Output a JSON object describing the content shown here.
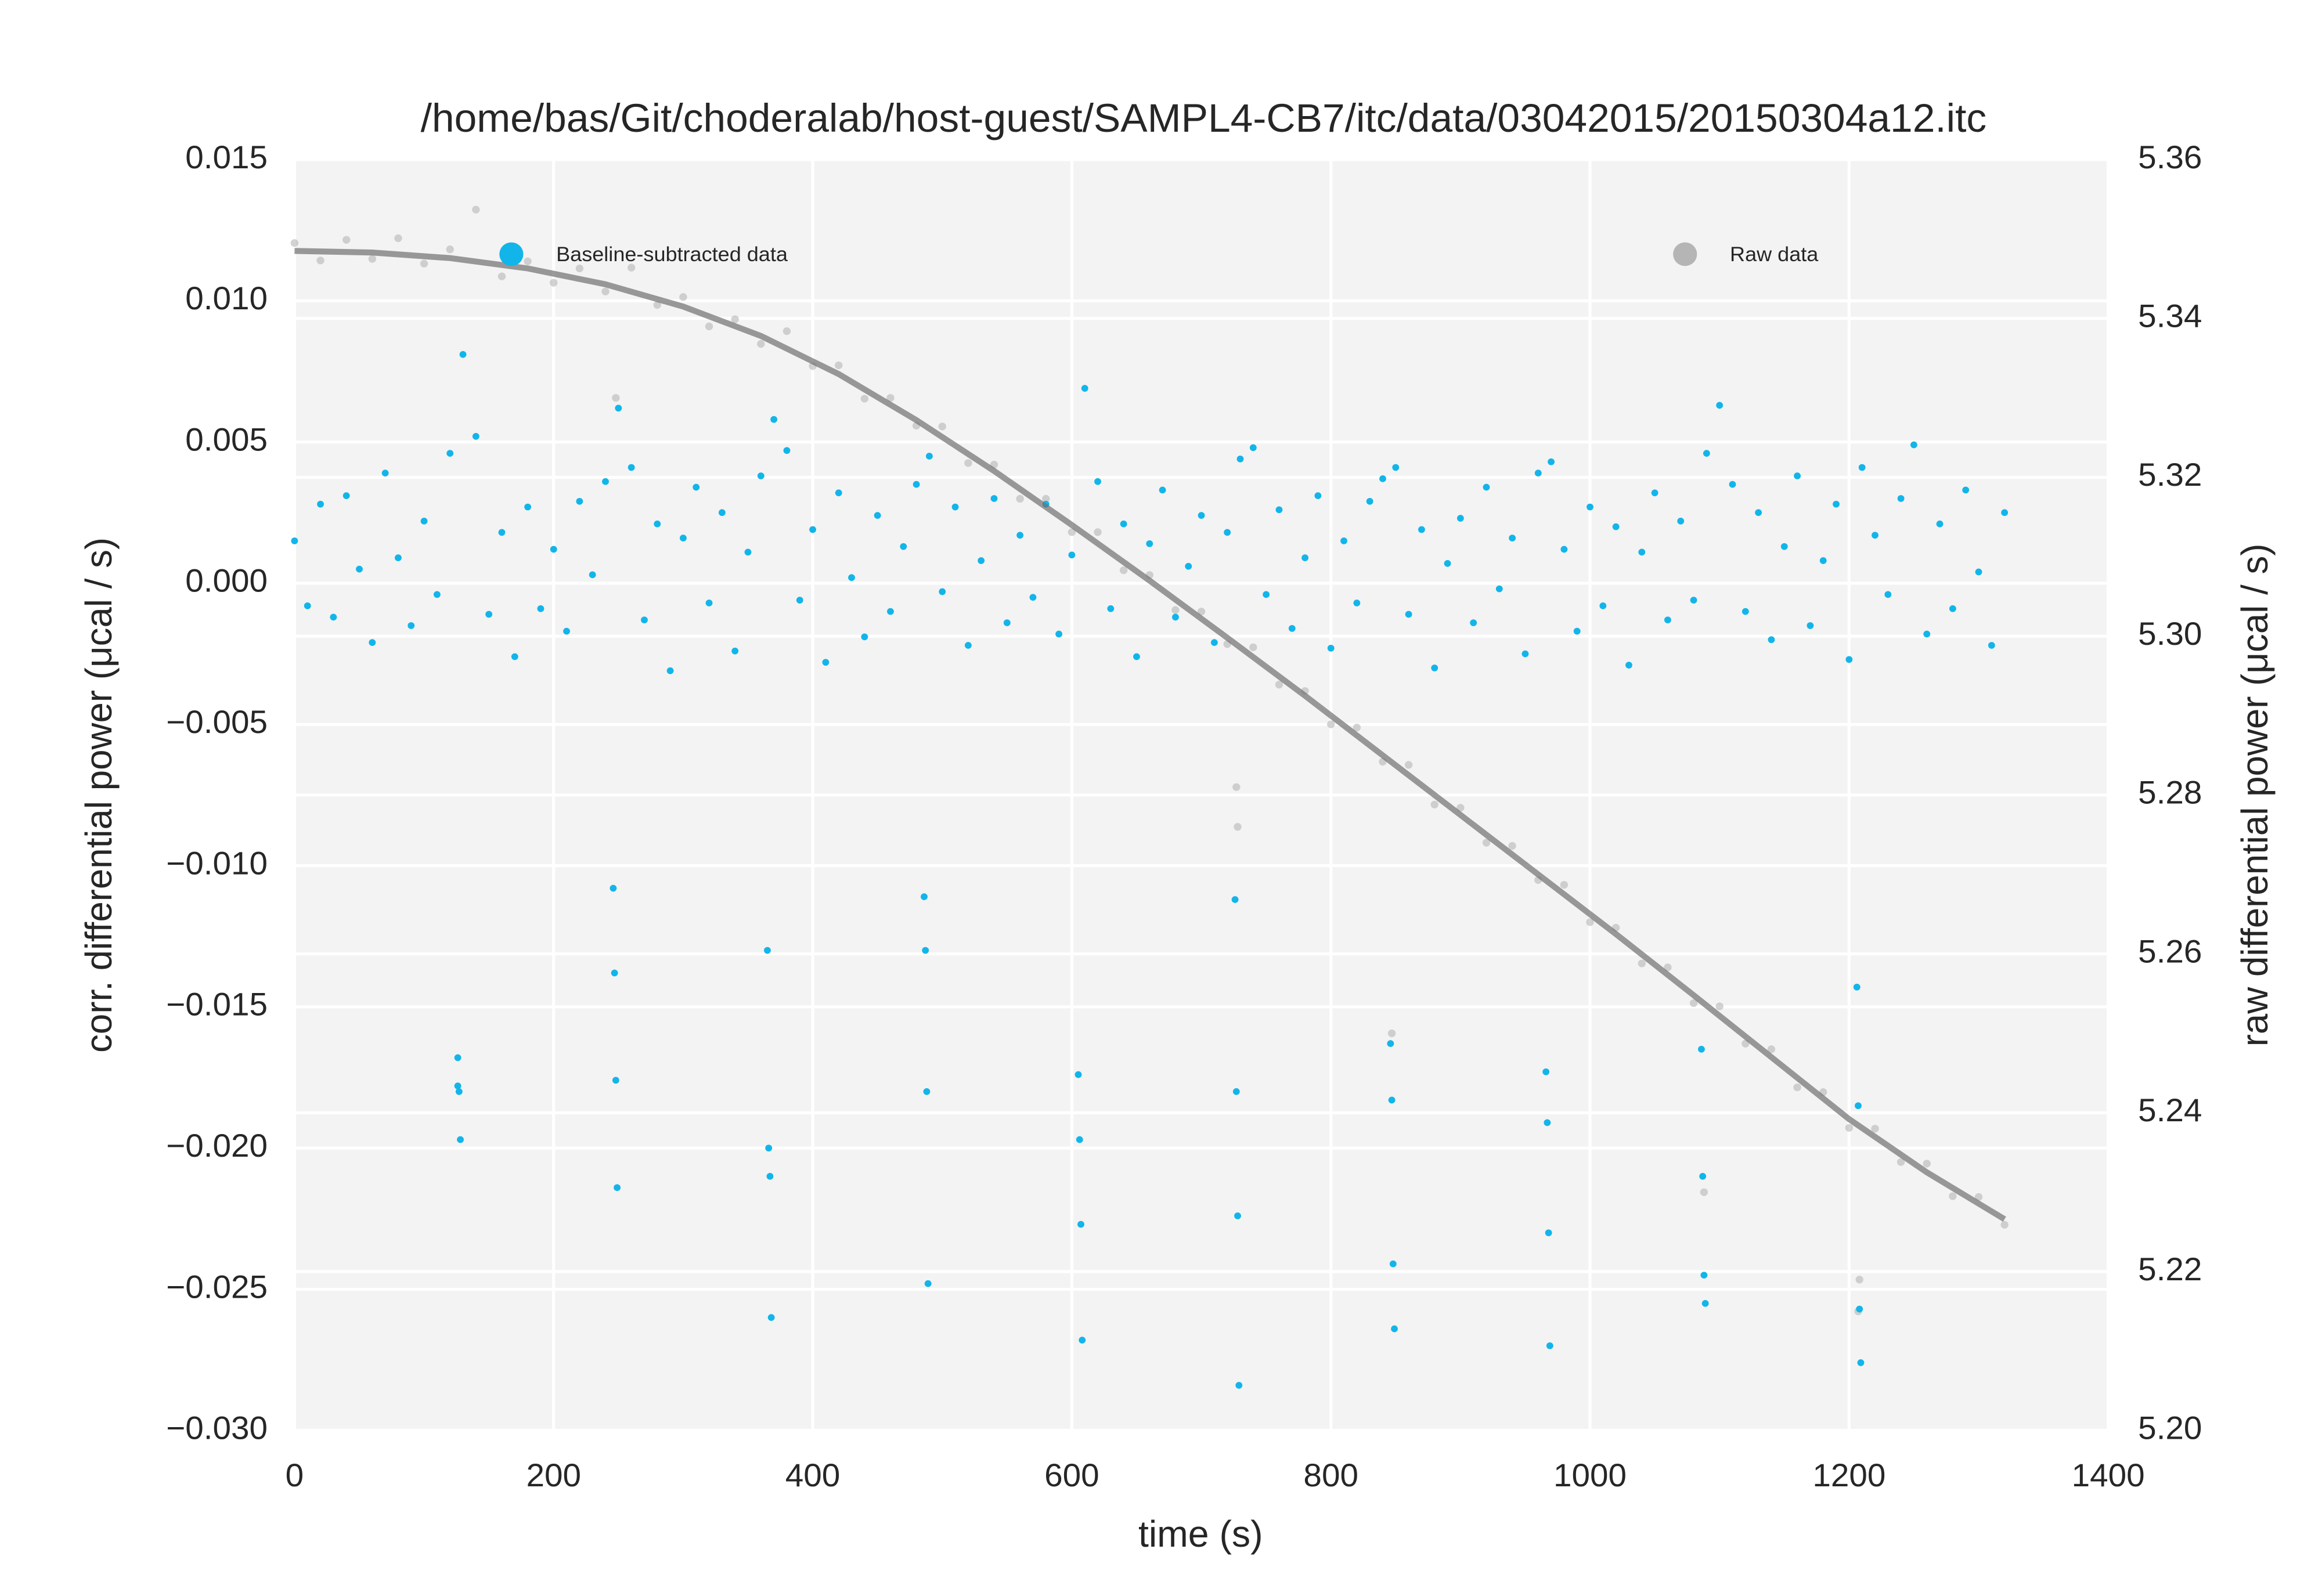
{
  "chart_data": {
    "type": "scatter",
    "title": "/home/bas/Git/choderalab/host-guest/SAMPL4-CB7/itc/data/03042015/20150304a12.itc",
    "x_label": "time (s)",
    "y_label": "corr. differential power (μcal / s)",
    "y2_label": "raw differential power (μcal / s)",
    "xlim": [
      0,
      1400
    ],
    "xticks": [
      0,
      200,
      400,
      600,
      800,
      1000,
      1200,
      1400
    ],
    "ylim": [
      -0.03,
      0.015
    ],
    "yticks": [
      {
        "value": -0.03,
        "label": "−0.030"
      },
      {
        "value": -0.025,
        "label": "−0.025"
      },
      {
        "value": -0.02,
        "label": "−0.020"
      },
      {
        "value": -0.015,
        "label": "−0.015"
      },
      {
        "value": -0.01,
        "label": "−0.010"
      },
      {
        "value": -0.005,
        "label": "−0.005"
      },
      {
        "value": 0,
        "label": "0.000"
      },
      0.005,
      {
        "value": 0.01,
        "label": "0.010"
      },
      0.015
    ],
    "y2lim": [
      5.2,
      5.36
    ],
    "y2ticks": [
      {
        "value": 5.2,
        "label": "5.20"
      },
      5.22,
      5.24,
      5.26,
      5.28,
      {
        "value": 5.3,
        "label": "5.30"
      },
      5.32,
      5.34,
      5.36
    ],
    "grid": true,
    "series": [
      {
        "name": "Raw data",
        "color": "#b5b5b5",
        "axis": "y2",
        "legend": "upper right",
        "x": [
          0,
          20,
          40,
          60,
          80,
          100,
          120,
          140,
          160,
          180,
          200,
          220,
          240,
          260,
          280,
          300,
          320,
          340,
          360,
          380,
          400,
          420,
          440,
          460,
          480,
          500,
          520,
          540,
          560,
          580,
          600,
          620,
          640,
          660,
          680,
          700,
          720,
          740,
          760,
          780,
          800,
          820,
          840,
          860,
          880,
          900,
          920,
          940,
          960,
          980,
          1000,
          1020,
          1040,
          1060,
          1080,
          1100,
          1120,
          1140,
          1160,
          1180,
          1200,
          1220,
          1240,
          1260,
          1280,
          1300,
          1320,
          248,
          727,
          728,
          847,
          1088,
          1207,
          1208
        ],
        "values": [
          5.3495,
          5.3473,
          5.3499,
          5.3475,
          5.3501,
          5.3469,
          5.3487,
          5.3537,
          5.3453,
          5.3472,
          5.3445,
          5.3463,
          5.3434,
          5.3464,
          5.3417,
          5.3427,
          5.339,
          5.3399,
          5.3368,
          5.3384,
          5.334,
          5.3341,
          5.3299,
          5.33,
          5.3265,
          5.3264,
          5.3218,
          5.3216,
          5.3173,
          5.3173,
          5.3131,
          5.3131,
          5.3083,
          5.3077,
          5.3033,
          5.3031,
          5.299,
          5.2986,
          5.2939,
          5.2931,
          5.2889,
          5.2885,
          5.2842,
          5.2838,
          5.2788,
          5.2784,
          5.274,
          5.2736,
          5.2693,
          5.2687,
          5.264,
          5.2633,
          5.2588,
          5.2583,
          5.2538,
          5.2534,
          5.2487,
          5.248,
          5.2432,
          5.2426,
          5.2381,
          5.238,
          5.2338,
          5.2336,
          5.2295,
          5.2294,
          5.2259,
          5.33,
          5.281,
          5.276,
          5.25,
          5.23,
          5.215,
          5.219
        ]
      },
      {
        "name": "Baseline-subtracted data",
        "color": "#12b5ea",
        "axis": "y",
        "legend": "upper left",
        "x": [
          0,
          10,
          20,
          30,
          40,
          50,
          60,
          70,
          80,
          90,
          100,
          110,
          120,
          130,
          140,
          150,
          160,
          170,
          180,
          190,
          200,
          210,
          220,
          230,
          240,
          250,
          260,
          270,
          280,
          290,
          300,
          310,
          320,
          330,
          340,
          350,
          360,
          370,
          380,
          390,
          400,
          410,
          420,
          430,
          440,
          450,
          460,
          470,
          480,
          490,
          500,
          510,
          520,
          530,
          540,
          550,
          560,
          570,
          580,
          590,
          600,
          610,
          620,
          630,
          640,
          650,
          660,
          670,
          680,
          690,
          700,
          710,
          720,
          730,
          740,
          750,
          760,
          770,
          780,
          790,
          800,
          810,
          820,
          830,
          840,
          850,
          860,
          870,
          880,
          890,
          900,
          910,
          920,
          930,
          940,
          950,
          960,
          970,
          980,
          990,
          1000,
          1010,
          1020,
          1030,
          1040,
          1050,
          1060,
          1070,
          1080,
          1090,
          1100,
          1110,
          1120,
          1130,
          1140,
          1150,
          1160,
          1170,
          1180,
          1190,
          1200,
          1210,
          1220,
          1230,
          1240,
          1250,
          1260,
          1270,
          1280,
          1290,
          1300,
          1310,
          1320,
          126,
          126,
          127,
          128,
          246,
          247,
          248,
          249,
          365,
          366,
          367,
          368,
          486,
          487,
          488,
          489,
          605,
          606,
          607,
          608,
          726,
          727,
          728,
          729,
          846,
          847,
          848,
          849,
          966,
          967,
          968,
          969,
          1086,
          1087,
          1088,
          1089,
          1206,
          1207,
          1208,
          1209
        ],
        "values": [
          0.0015,
          -0.0008,
          0.0028,
          -0.0012,
          0.0031,
          0.0005,
          -0.0021,
          0.0039,
          0.0009,
          -0.0015,
          0.0022,
          -0.0004,
          0.0046,
          0.0081,
          0.0052,
          -0.0011,
          0.0018,
          -0.0026,
          0.0027,
          -0.0009,
          0.0012,
          -0.0017,
          0.0029,
          0.0003,
          0.0036,
          0.0062,
          0.0041,
          -0.0013,
          0.0021,
          -0.0031,
          0.0016,
          0.0034,
          -0.0007,
          0.0025,
          -0.0024,
          0.0011,
          0.0038,
          0.0058,
          0.0047,
          -0.0006,
          0.0019,
          -0.0028,
          0.0032,
          0.0002,
          -0.0019,
          0.0024,
          -0.001,
          0.0013,
          0.0035,
          0.0045,
          -0.0003,
          0.0027,
          -0.0022,
          0.0008,
          0.003,
          -0.0014,
          0.0017,
          -0.0005,
          0.0028,
          -0.0018,
          0.001,
          0.0069,
          0.0036,
          -0.0009,
          0.0021,
          -0.0026,
          0.0014,
          0.0033,
          -0.0012,
          0.0006,
          0.0024,
          -0.0021,
          0.0018,
          0.0044,
          0.0048,
          -0.0004,
          0.0026,
          -0.0016,
          0.0009,
          0.0031,
          -0.0023,
          0.0015,
          -0.0007,
          0.0029,
          0.0037,
          0.0041,
          -0.0011,
          0.0019,
          -0.003,
          0.0007,
          0.0023,
          -0.0014,
          0.0034,
          -0.0002,
          0.0016,
          -0.0025,
          0.0039,
          0.0043,
          0.0012,
          -0.0017,
          0.0027,
          -0.0008,
          0.002,
          -0.0029,
          0.0011,
          0.0032,
          -0.0013,
          0.0022,
          -0.0006,
          0.0046,
          0.0063,
          0.0035,
          -0.001,
          0.0025,
          -0.002,
          0.0013,
          0.0038,
          -0.0015,
          0.0008,
          0.0028,
          -0.0027,
          0.0041,
          0.0017,
          -0.0004,
          0.003,
          0.0049,
          -0.0018,
          0.0021,
          -0.0009,
          0.0033,
          0.0004,
          -0.0022,
          0.0025,
          -0.0168,
          -0.0178,
          -0.018,
          -0.0197,
          -0.0108,
          -0.0138,
          -0.0176,
          -0.0214,
          -0.013,
          -0.02,
          -0.021,
          -0.026,
          -0.0111,
          -0.013,
          -0.018,
          -0.0248,
          -0.0174,
          -0.0197,
          -0.0227,
          -0.0268,
          -0.0112,
          -0.018,
          -0.0224,
          -0.0284,
          -0.0163,
          -0.0183,
          -0.0241,
          -0.0264,
          -0.0173,
          -0.0191,
          -0.023,
          -0.027,
          -0.0165,
          -0.021,
          -0.0245,
          -0.0255,
          -0.0143,
          -0.0185,
          -0.0257,
          -0.0276
        ]
      },
      {
        "type": "line",
        "color": "#6f6f6f",
        "axis": "y2",
        "x": [
          0,
          60,
          120,
          180,
          240,
          300,
          360,
          420,
          480,
          540,
          600,
          660,
          720,
          780,
          840,
          900,
          960,
          1020,
          1080,
          1140,
          1200,
          1260,
          1320
        ],
        "values": [
          5.3485,
          5.3483,
          5.3476,
          5.3463,
          5.3443,
          5.3415,
          5.3378,
          5.333,
          5.3272,
          5.3208,
          5.314,
          5.307,
          5.2998,
          5.2925,
          5.285,
          5.2775,
          5.27,
          5.2625,
          5.2548,
          5.247,
          5.2392,
          5.2325,
          5.2266
        ]
      }
    ]
  }
}
